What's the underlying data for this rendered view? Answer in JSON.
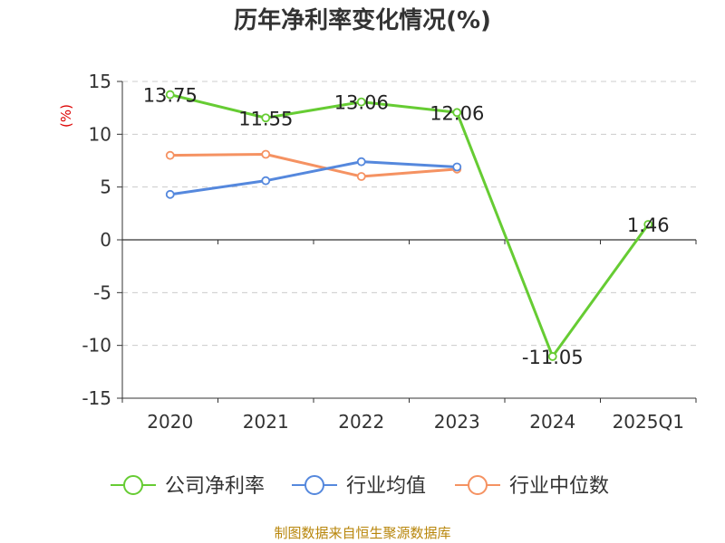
{
  "chart_data": {
    "type": "line",
    "title": "历年净利率变化情况(%)",
    "ylabel": "(%)",
    "categories": [
      "2020",
      "2021",
      "2022",
      "2023",
      "2024",
      "2025Q1"
    ],
    "ylim": [
      -15,
      15
    ],
    "yticks": [
      15,
      10,
      5,
      0,
      -5,
      -10,
      -15
    ],
    "ytick_labels": [
      "15",
      "10",
      "5",
      "0",
      "-5",
      "-10",
      "-15"
    ],
    "grid": true,
    "legend_position": "bottom",
    "series": [
      {
        "name": "公司净利率",
        "color": "#66cc33",
        "values": [
          13.75,
          11.55,
          13.06,
          12.06,
          -11.05,
          1.46
        ],
        "labels": [
          "13.75",
          "11.55",
          "13.06",
          "12.06",
          "-11.05",
          "1.46"
        ]
      },
      {
        "name": "行业均值",
        "color": "#5588dd",
        "values": [
          4.3,
          5.6,
          7.4,
          6.9,
          null,
          null
        ]
      },
      {
        "name": "行业中位数",
        "color": "#f59262",
        "values": [
          8.0,
          8.1,
          6.0,
          6.7,
          null,
          null
        ]
      }
    ]
  },
  "footer": {
    "source": "制图数据来自恒生聚源数据库"
  }
}
